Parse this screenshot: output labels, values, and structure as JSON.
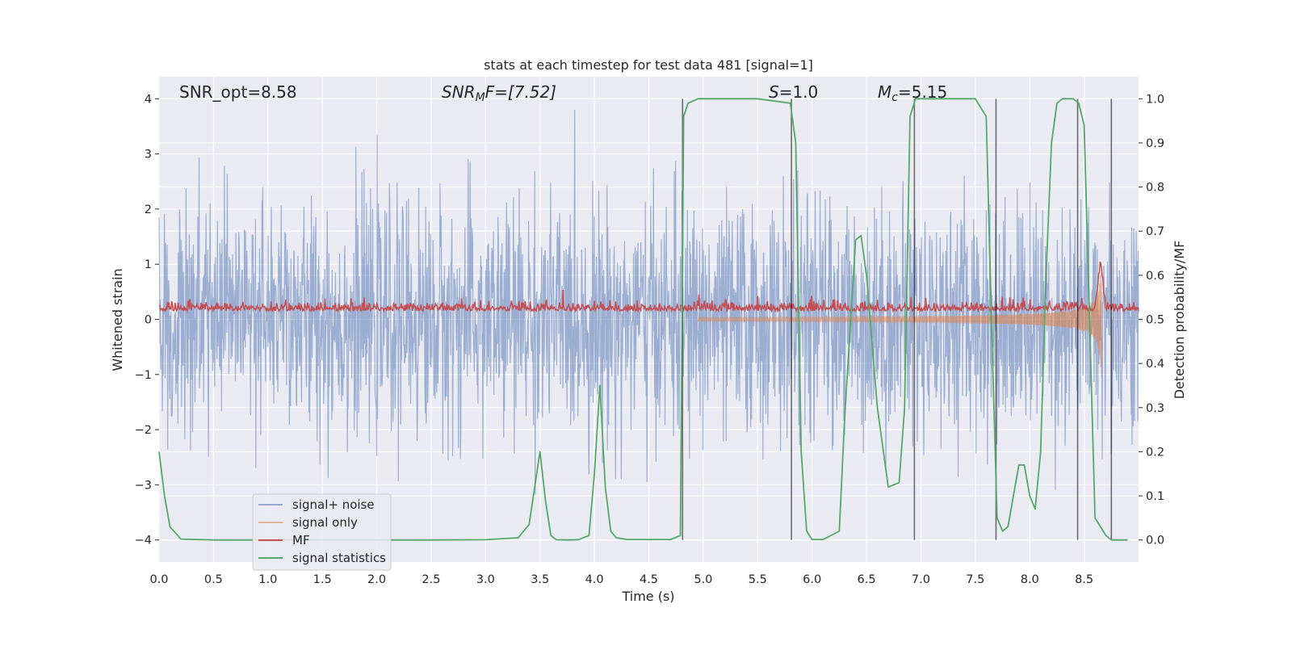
{
  "chart_data": {
    "type": "line",
    "title": "stats at each timestep for test data 481 [signal=1]",
    "xlabel": "Time (s)",
    "ylabel_left": "Whitened strain",
    "ylabel_right": "Detection probability/MF",
    "xlim": [
      0,
      9.0
    ],
    "ylim_left": [
      -4.4,
      4.4
    ],
    "ylim_right": [
      -0.05,
      1.05
    ],
    "x_ticks": [
      0.0,
      0.5,
      1.0,
      1.5,
      2.0,
      2.5,
      3.0,
      3.5,
      4.0,
      4.5,
      5.0,
      5.5,
      6.0,
      6.5,
      7.0,
      7.5,
      8.0,
      8.5
    ],
    "x_tick_labels": [
      "0.0",
      "0.5",
      "1.0",
      "1.5",
      "2.0",
      "2.5",
      "3.0",
      "3.5",
      "4.0",
      "4.5",
      "5.0",
      "5.5",
      "6.0",
      "6.5",
      "7.0",
      "7.5",
      "8.0",
      "8.5"
    ],
    "y_ticks_left": [
      4,
      3,
      2,
      1,
      0,
      -1,
      -2,
      -3,
      -4
    ],
    "y_tick_labels_left": [
      "4",
      "3",
      "2",
      "1",
      "0",
      "−1",
      "−2",
      "−3",
      "−4"
    ],
    "y_ticks_right": [
      1.0,
      0.9,
      0.8,
      0.7,
      0.6,
      0.5,
      0.4,
      0.3,
      0.2,
      0.1,
      0.0
    ],
    "y_tick_labels_right": [
      "1.0",
      "0.9",
      "0.8",
      "0.7",
      "0.6",
      "0.5",
      "0.4",
      "0.3",
      "0.2",
      "0.1",
      "0.0"
    ],
    "annotations": {
      "snr_opt": "SNR_opt=8.58",
      "snr_mf_main": "SNR",
      "snr_mf_sub": "M",
      "snr_mf_rest": "F=[7.52]",
      "s_italic": "S",
      "s_rest": "=1.0",
      "mc_main": "M",
      "mc_sub": "c",
      "mc_rest": "=5.15"
    },
    "vertical_lines_x": [
      4.81,
      5.81,
      6.94,
      7.69,
      8.44,
      8.75
    ],
    "series": [
      {
        "name": "signal+ noise",
        "color": "#4c72b0",
        "description": "whitened strain, gaussian noise with rms approx 1 and peaks up to about +/-3.5 over the whole time range"
      },
      {
        "name": "signal only",
        "color": "#dd8452",
        "description": "chirp signal, amplitude approx 0.05 near t=5.0 growing to approx 1.0 at t=8.65 then ending"
      },
      {
        "name": "MF",
        "color": "#c44e52",
        "axis": "right",
        "description": "matched-filter output on right axis, fluctuating approx 0.51 to 0.54, spike to approx 0.63 near t=8.65"
      },
      {
        "name": "signal statistics",
        "color": "#55a868",
        "axis": "right",
        "x": [
          0.0,
          0.05,
          0.1,
          0.2,
          0.5,
          1.0,
          1.5,
          2.0,
          2.5,
          3.0,
          3.3,
          3.4,
          3.5,
          3.55,
          3.6,
          3.65,
          3.75,
          3.85,
          3.95,
          4.0,
          4.05,
          4.1,
          4.15,
          4.2,
          4.3,
          4.5,
          4.7,
          4.79,
          4.82,
          4.86,
          4.95,
          5.2,
          5.5,
          5.8,
          5.85,
          5.9,
          5.95,
          6.0,
          6.1,
          6.25,
          6.3,
          6.4,
          6.45,
          6.5,
          6.6,
          6.7,
          6.8,
          6.85,
          6.9,
          6.95,
          7.0,
          7.05,
          7.1,
          7.2,
          7.5,
          7.6,
          7.65,
          7.7,
          7.75,
          7.8,
          7.85,
          7.9,
          7.95,
          8.0,
          8.05,
          8.1,
          8.15,
          8.2,
          8.25,
          8.3,
          8.4,
          8.45,
          8.5,
          8.6,
          8.7,
          8.75,
          8.8,
          8.85,
          8.9
        ],
        "values": [
          0.2,
          0.1,
          0.03,
          0.002,
          0.0,
          0.0,
          0.0,
          0.0,
          0.0,
          0.0005,
          0.005,
          0.035,
          0.2,
          0.09,
          0.01,
          0.0005,
          0.0,
          0.0005,
          0.01,
          0.15,
          0.35,
          0.12,
          0.02,
          0.005,
          0.001,
          0.001,
          0.001,
          0.01,
          0.96,
          0.99,
          1.0,
          1.0,
          1.0,
          0.99,
          0.9,
          0.2,
          0.02,
          0.001,
          0.001,
          0.02,
          0.28,
          0.68,
          0.69,
          0.6,
          0.3,
          0.12,
          0.13,
          0.3,
          0.96,
          1.0,
          1.0,
          1.0,
          1.0,
          1.0,
          1.0,
          0.96,
          0.48,
          0.05,
          0.02,
          0.03,
          0.1,
          0.17,
          0.17,
          0.1,
          0.07,
          0.2,
          0.6,
          0.9,
          0.99,
          1.0,
          1.0,
          0.99,
          0.94,
          0.05,
          0.01,
          0.0,
          0.0,
          0.0,
          0.0
        ]
      }
    ],
    "legend": {
      "placement": "lower-left",
      "entries": [
        "signal+ noise",
        "signal only",
        "MF",
        "signal statistics"
      ]
    }
  },
  "colors": {
    "background": "#eaeaf2",
    "grid": "#ffffff",
    "vline": "#000000"
  }
}
